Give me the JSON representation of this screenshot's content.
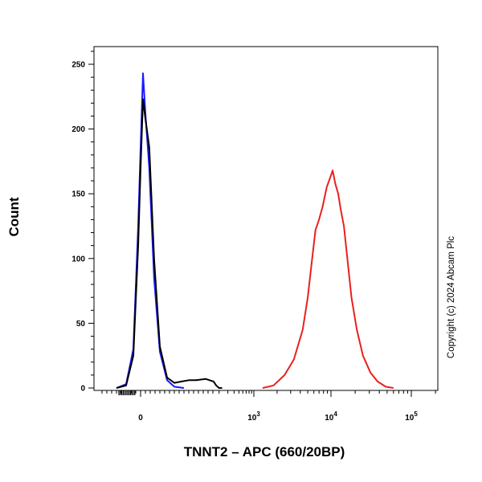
{
  "chart_data": {
    "type": "line",
    "xlabel": "TNNT2 – APC (660/20BP)",
    "ylabel": "Count",
    "x_scale": "biexponential",
    "xtick_labels": [
      {
        "value": 0,
        "label": "0"
      },
      {
        "value": 1000,
        "base": "10",
        "exp": "3"
      },
      {
        "value": 10000,
        "base": "10",
        "exp": "4"
      },
      {
        "value": 100000,
        "base": "10",
        "exp": "5"
      }
    ],
    "yticks": [
      0,
      50,
      100,
      150,
      200,
      250
    ],
    "ylim": [
      0,
      262
    ],
    "grid": false,
    "legend": "none",
    "series": [
      {
        "color": "#1a1aff",
        "points": [
          [
            -50,
            0
          ],
          [
            -30,
            3
          ],
          [
            -15,
            30
          ],
          [
            -5,
            125
          ],
          [
            0,
            185
          ],
          [
            5,
            243
          ],
          [
            10,
            212
          ],
          [
            18,
            170
          ],
          [
            28,
            85
          ],
          [
            40,
            28
          ],
          [
            55,
            6
          ],
          [
            70,
            1
          ],
          [
            90,
            0
          ]
        ]
      },
      {
        "color": "#000000",
        "points": [
          [
            -50,
            0
          ],
          [
            -30,
            2
          ],
          [
            -15,
            25
          ],
          [
            -5,
            110
          ],
          [
            0,
            170
          ],
          [
            5,
            223
          ],
          [
            10,
            208
          ],
          [
            18,
            186
          ],
          [
            28,
            100
          ],
          [
            40,
            32
          ],
          [
            55,
            8
          ],
          [
            70,
            4
          ],
          [
            85,
            5
          ],
          [
            100,
            6
          ],
          [
            115,
            6
          ],
          [
            135,
            7
          ],
          [
            155,
            5
          ],
          [
            175,
            2
          ],
          [
            200,
            0
          ],
          [
            230,
            0
          ]
        ]
      },
      {
        "color": "#e8211e",
        "points": [
          [
            1300,
            0
          ],
          [
            1800,
            2
          ],
          [
            2500,
            10
          ],
          [
            3300,
            22
          ],
          [
            4300,
            45
          ],
          [
            5000,
            70
          ],
          [
            5700,
            100
          ],
          [
            6300,
            122
          ],
          [
            7000,
            130
          ],
          [
            7800,
            140
          ],
          [
            8800,
            155
          ],
          [
            9700,
            162
          ],
          [
            10500,
            168
          ],
          [
            11300,
            158
          ],
          [
            12300,
            150
          ],
          [
            13200,
            138
          ],
          [
            14500,
            125
          ],
          [
            16000,
            100
          ],
          [
            18000,
            70
          ],
          [
            21000,
            45
          ],
          [
            25000,
            25
          ],
          [
            31000,
            12
          ],
          [
            38000,
            5
          ],
          [
            48000,
            1
          ],
          [
            60000,
            0
          ]
        ]
      }
    ]
  },
  "copyright": "Copyright (c) 2024 Abcam Plc"
}
